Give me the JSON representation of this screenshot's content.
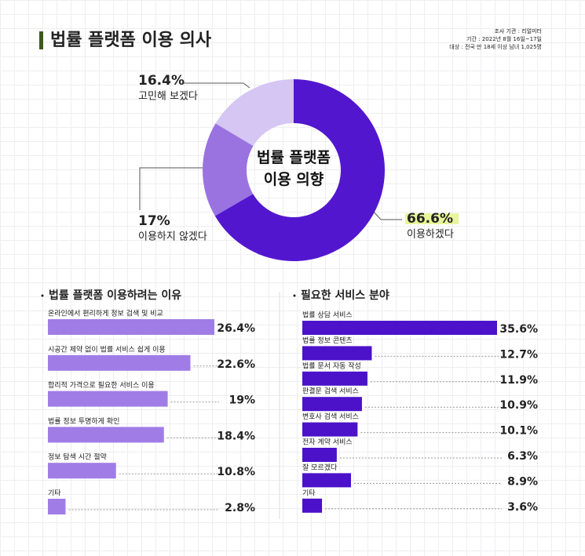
{
  "header": {
    "title": "법률 플랫폼 이용 의사",
    "source": [
      "조사 기관 : 리얼미터",
      "기간 : 2022년 8월 16일~17일",
      "대상 : 전국 만 18세 이상 남녀 1,025명"
    ]
  },
  "chart_data": [
    {
      "type": "pie",
      "title": "법률 플랫폼 이용 의향",
      "categories": [
        "이용하겠다",
        "이용하지 않겠다",
        "고민해 보겠다"
      ],
      "values": [
        66.6,
        17,
        16.4
      ],
      "value_labels": [
        "66.6%",
        "17%",
        "16.4%"
      ],
      "colors": [
        "#5316cf",
        "#9a73e0",
        "#d5c6f3"
      ]
    },
    {
      "type": "bar",
      "title": "법률 플랫폼 이용하려는 이유",
      "categories": [
        "온라인에서 편리하게 정보 검색 및 비교",
        "시공간 제약 없이 법률 서비스 쉽게 이용",
        "합리적 가격으로 필요한 서비스 이용",
        "법률 정보 투명하게 확인",
        "정보 탐색 시간 절약",
        "기타"
      ],
      "values": [
        26.4,
        22.6,
        19,
        18.4,
        10.8,
        2.8
      ],
      "value_labels": [
        "26.4%",
        "22.6%",
        "19%",
        "18.4%",
        "10.8%",
        "2.8%"
      ],
      "color": "#a07de6"
    },
    {
      "type": "bar",
      "title": "필요한 서비스 분야",
      "categories": [
        "법률 상담 서비스",
        "법률 정보 콘텐츠",
        "법률 문서 자동 작성",
        "판결문 검색 서비스",
        "변호사 검색 서비스",
        "전자 계약 서비스",
        "잘 모르겠다",
        "기타"
      ],
      "values": [
        35.6,
        12.7,
        11.9,
        10.9,
        10.1,
        6.3,
        8.9,
        3.6
      ],
      "value_labels": [
        "35.6%",
        "12.7%",
        "11.9%",
        "10.9%",
        "10.1%",
        "6.3%",
        "8.9%",
        "3.6%"
      ],
      "color": "#4b12c9"
    }
  ]
}
